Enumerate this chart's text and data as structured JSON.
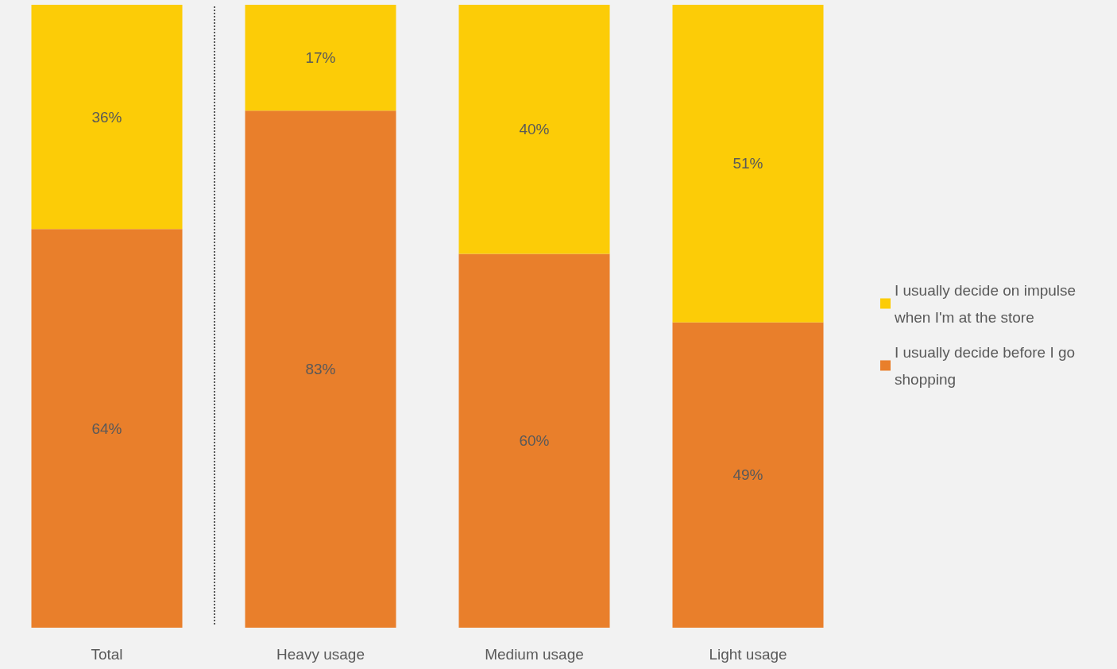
{
  "chart_data": {
    "type": "bar",
    "stacked": true,
    "categories": [
      "Total",
      "Heavy usage",
      "Medium usage",
      "Light usage"
    ],
    "series": [
      {
        "name": "I usually decide before I go shopping",
        "color": "#e97f2b",
        "values": [
          64,
          83,
          60,
          49
        ],
        "value_labels": [
          "64%",
          "83%",
          "60%",
          "49%"
        ]
      },
      {
        "name": "I usually decide on impulse when I'm at the store",
        "color": "#fccc07",
        "values": [
          36,
          17,
          40,
          51
        ],
        "value_labels": [
          "36%",
          "17%",
          "40%",
          "51%"
        ]
      }
    ],
    "legend": "right"
  }
}
